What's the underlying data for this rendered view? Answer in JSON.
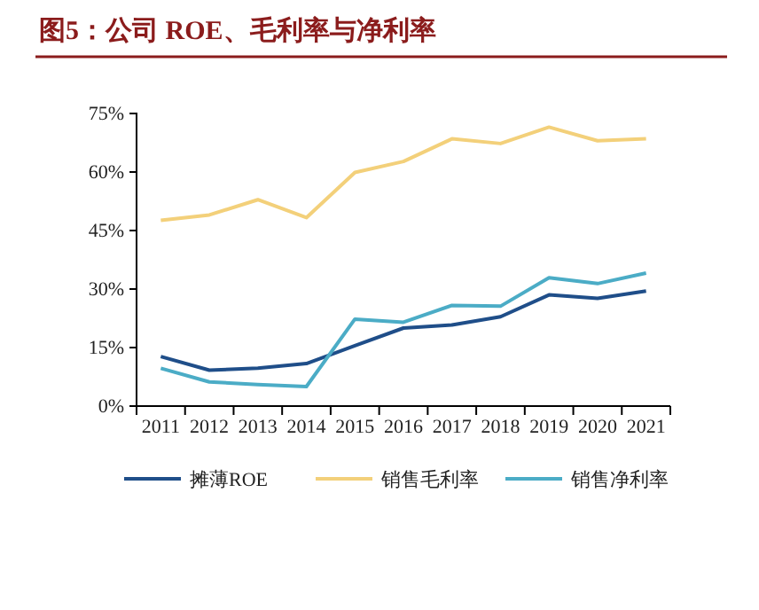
{
  "chart_data": {
    "type": "line",
    "title": "图5：公司 ROE、毛利率与净利率",
    "categories": [
      "2011",
      "2012",
      "2013",
      "2014",
      "2015",
      "2016",
      "2017",
      "2018",
      "2019",
      "2020",
      "2021"
    ],
    "series": [
      {
        "name": "摊薄ROE",
        "color": "#1f4e89",
        "values": [
          12.7,
          9.2,
          9.7,
          10.9,
          15.5,
          20,
          20.8,
          22.9,
          28.5,
          27.6,
          29.5
        ]
      },
      {
        "name": "销售毛利率",
        "color": "#f3d07a",
        "values": [
          47.6,
          49,
          52.9,
          48.3,
          59.9,
          62.7,
          68.5,
          67.3,
          71.5,
          68,
          68.5
        ]
      },
      {
        "name": "销售净利率",
        "color": "#4bacc6",
        "values": [
          9.7,
          6.2,
          5.5,
          5,
          22.3,
          21.5,
          25.8,
          25.6,
          32.9,
          31.4,
          34.1
        ]
      }
    ],
    "ylim": [
      0,
      75
    ],
    "yticks": [
      {
        "value": 0,
        "label": "0%"
      },
      {
        "value": 15,
        "label": "15%"
      },
      {
        "value": 30,
        "label": "30%"
      },
      {
        "value": 45,
        "label": "45%"
      },
      {
        "value": 60,
        "label": "60%"
      },
      {
        "value": 75,
        "label": "75%"
      }
    ],
    "grid": false,
    "legend": "bottom",
    "marker": "none",
    "line_style": "solid"
  }
}
